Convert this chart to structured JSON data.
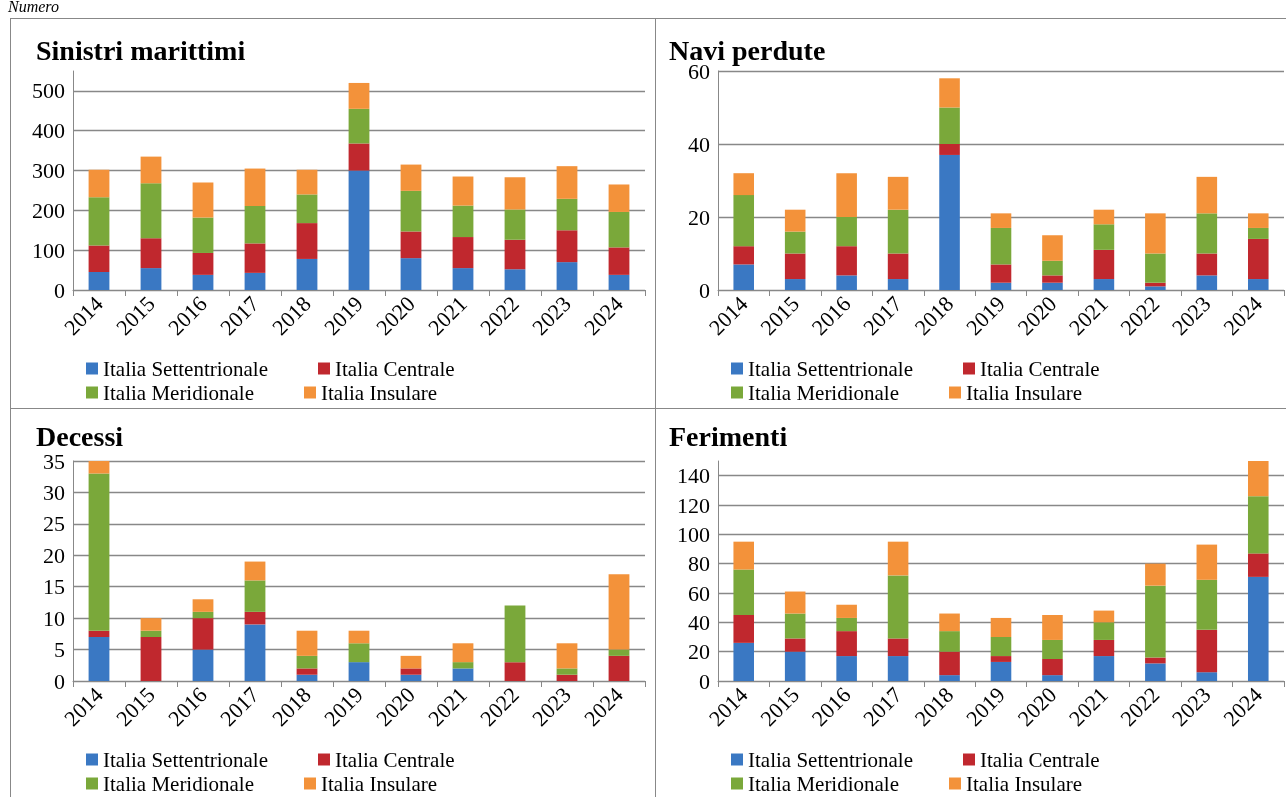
{
  "chart_data": [
    {
      "type": "bar",
      "title": "Sinistri marittimi",
      "annotations": [
        "Numero"
      ],
      "stacked": true,
      "grid": "y",
      "legend": "bottom",
      "categories": [
        "2014",
        "2015",
        "2016",
        "2017",
        "2018",
        "2019",
        "2020",
        "2021",
        "2022",
        "2023",
        "2024"
      ],
      "ylim": [
        0,
        550
      ],
      "yticks": [
        0,
        100,
        200,
        300,
        400,
        500
      ],
      "series": [
        {
          "name": "Italia Settentrionale",
          "color": "#3a78c3",
          "values": [
            45,
            55,
            38,
            43,
            78,
            300,
            80,
            55,
            52,
            70,
            38
          ]
        },
        {
          "name": "Italia Centrale",
          "color": "#c0282e",
          "values": [
            67,
            75,
            55,
            74,
            90,
            68,
            67,
            78,
            74,
            80,
            69
          ]
        },
        {
          "name": "Italia Meridionale",
          "color": "#7aa83a",
          "values": [
            121,
            138,
            89,
            94,
            72,
            87,
            102,
            79,
            76,
            79,
            89
          ]
        },
        {
          "name": "Italia Insulare",
          "color": "#f3923a",
          "values": [
            69,
            67,
            88,
            94,
            62,
            65,
            66,
            73,
            81,
            82,
            69
          ]
        }
      ]
    },
    {
      "type": "bar",
      "title": "Navi perdute",
      "stacked": true,
      "grid": "y",
      "legend": "bottom",
      "categories": [
        "2014",
        "2015",
        "2016",
        "2017",
        "2018",
        "2019",
        "2020",
        "2021",
        "2022",
        "2023",
        "2024"
      ],
      "ylim": [
        0,
        60
      ],
      "yticks": [
        0,
        20,
        40,
        60
      ],
      "series": [
        {
          "name": "Italia Settentrionale",
          "color": "#3a78c3",
          "values": [
            7,
            3,
            4,
            3,
            37,
            2,
            2,
            3,
            1,
            4,
            3
          ]
        },
        {
          "name": "Italia Centrale",
          "color": "#c0282e",
          "values": [
            5,
            7,
            8,
            7,
            3,
            5,
            2,
            8,
            1,
            6,
            11
          ]
        },
        {
          "name": "Italia Meridionale",
          "color": "#7aa83a",
          "values": [
            14,
            6,
            8,
            12,
            10,
            10,
            4,
            7,
            8,
            11,
            3
          ]
        },
        {
          "name": "Italia Insulare",
          "color": "#f3923a",
          "values": [
            6,
            6,
            12,
            9,
            8,
            4,
            7,
            4,
            11,
            10,
            4
          ]
        }
      ]
    },
    {
      "type": "bar",
      "title": "Decessi",
      "stacked": true,
      "grid": "y",
      "legend": "bottom",
      "categories": [
        "2014",
        "2015",
        "2016",
        "2017",
        "2018",
        "2019",
        "2020",
        "2021",
        "2022",
        "2023",
        "2024"
      ],
      "ylim": [
        0,
        35
      ],
      "yticks": [
        0,
        5,
        10,
        15,
        20,
        25,
        30,
        35
      ],
      "series": [
        {
          "name": "Italia Settentrionale",
          "color": "#3a78c3",
          "values": [
            7,
            0,
            5,
            9,
            1,
            3,
            1,
            2,
            0,
            0,
            0
          ]
        },
        {
          "name": "Italia Centrale",
          "color": "#c0282e",
          "values": [
            1,
            7,
            5,
            2,
            1,
            0,
            1,
            0,
            3,
            1,
            4
          ]
        },
        {
          "name": "Italia Meridionale",
          "color": "#7aa83a",
          "values": [
            25,
            1,
            1,
            5,
            2,
            3,
            0,
            1,
            9,
            1,
            1
          ]
        },
        {
          "name": "Italia Insulare",
          "color": "#f3923a",
          "values": [
            2,
            2,
            2,
            3,
            4,
            2,
            2,
            3,
            0,
            4,
            12
          ]
        }
      ]
    },
    {
      "type": "bar",
      "title": "Ferimenti",
      "stacked": true,
      "grid": "y",
      "legend": "bottom",
      "categories": [
        "2014",
        "2015",
        "2016",
        "2017",
        "2018",
        "2019",
        "2020",
        "2021",
        "2022",
        "2023",
        "2024"
      ],
      "ylim": [
        0,
        150
      ],
      "yticks": [
        0,
        20,
        40,
        60,
        80,
        100,
        120,
        140
      ],
      "series": [
        {
          "name": "Italia Settentrionale",
          "color": "#3a78c3",
          "values": [
            26,
            20,
            17,
            17,
            4,
            13,
            4,
            17,
            12,
            6,
            71
          ]
        },
        {
          "name": "Italia Centrale",
          "color": "#c0282e",
          "values": [
            19,
            9,
            17,
            12,
            16,
            4,
            11,
            11,
            4,
            29,
            16
          ]
        },
        {
          "name": "Italia Meridionale",
          "color": "#7aa83a",
          "values": [
            31,
            17,
            9,
            43,
            14,
            13,
            13,
            12,
            49,
            34,
            39
          ]
        },
        {
          "name": "Italia Insulare",
          "color": "#f3923a",
          "values": [
            19,
            15,
            9,
            23,
            12,
            13,
            17,
            8,
            15,
            24,
            24
          ]
        }
      ]
    }
  ]
}
